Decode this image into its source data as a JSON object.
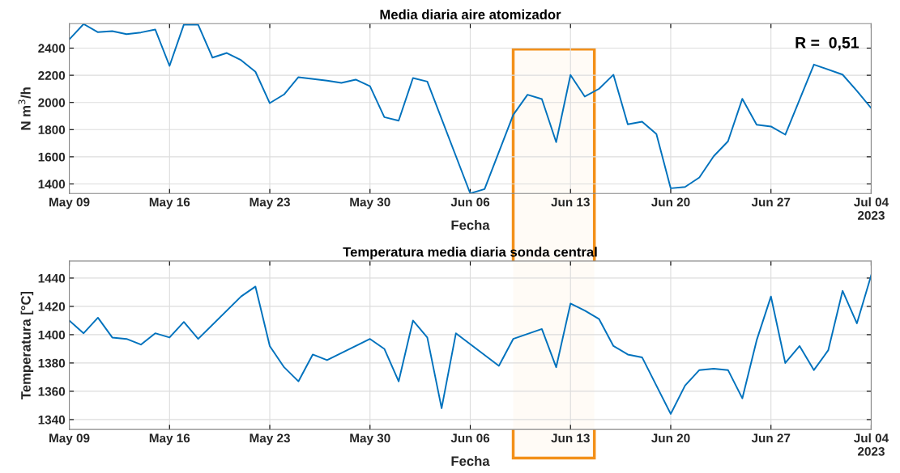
{
  "chart_data": [
    {
      "type": "line",
      "title": "Media diaria aire atomizador",
      "xlabel": "Fecha",
      "ylabel": "N m$^{3}$/h",
      "x": [
        "2023-05-09",
        "2023-05-10",
        "2023-05-11",
        "2023-05-12",
        "2023-05-13",
        "2023-05-14",
        "2023-05-15",
        "2023-05-16",
        "2023-05-17",
        "2023-05-18",
        "2023-05-19",
        "2023-05-20",
        "2023-05-21",
        "2023-05-22",
        "2023-05-23",
        "2023-05-24",
        "2023-05-25",
        "2023-05-27",
        "2023-05-28",
        "2023-05-29",
        "2023-05-30",
        "2023-05-31",
        "2023-06-01",
        "2023-06-02",
        "2023-06-03",
        "2023-06-06",
        "2023-06-07",
        "2023-06-09",
        "2023-06-10",
        "2023-06-11",
        "2023-06-12",
        "2023-06-13",
        "2023-06-14",
        "2023-06-15",
        "2023-06-16",
        "2023-06-17",
        "2023-06-18",
        "2023-06-19",
        "2023-06-20",
        "2023-06-21",
        "2023-06-22",
        "2023-06-23",
        "2023-06-24",
        "2023-06-25",
        "2023-06-26",
        "2023-06-27",
        "2023-06-28",
        "2023-06-30",
        "2023-07-02",
        "2023-07-03",
        "2023-07-04"
      ],
      "series": [
        {
          "color": "#0072bd",
          "values": [
            2464,
            2577,
            2517,
            2525,
            2503,
            2515,
            2537,
            2269,
            2573,
            2572,
            2330,
            2364,
            2311,
            2226,
            1995,
            2059,
            2186,
            2160,
            2144,
            2168,
            2120,
            1892,
            1866,
            2180,
            2154,
            1330,
            1362,
            1908,
            2057,
            2025,
            1708,
            2202,
            2043,
            2101,
            2204,
            1839,
            1858,
            1767,
            1368,
            1378,
            1448,
            1604,
            1714,
            2027,
            1836,
            1823,
            1763,
            2279,
            2205,
            2085,
            1958
          ]
        }
      ],
      "xlim": [
        "2023-05-09",
        "2023-07-04"
      ],
      "xticks": [
        {
          "value": "2023-05-09",
          "label": "May 09"
        },
        {
          "value": "2023-05-16",
          "label": "May 16"
        },
        {
          "value": "2023-05-23",
          "label": "May 23"
        },
        {
          "value": "2023-05-30",
          "label": "May 30"
        },
        {
          "value": "2023-06-06",
          "label": "Jun 06"
        },
        {
          "value": "2023-06-13",
          "label": "Jun 13"
        },
        {
          "value": "2023-06-20",
          "label": "Jun 20"
        },
        {
          "value": "2023-06-27",
          "label": "Jun 27"
        },
        {
          "value": "2023-07-04",
          "label": "Jul 04\n2023"
        }
      ],
      "ylim": [
        1330,
        2580
      ],
      "yticks": [
        1400,
        1600,
        1800,
        2000,
        2200,
        2400
      ],
      "grid": true,
      "line_style": "solid",
      "marker": "none",
      "bands": [
        {
          "axis": "x",
          "from": "2023-06-09",
          "to": "2023-06-14T16:00",
          "color": "#f39019"
        }
      ],
      "annotations": [
        "R =  0,51"
      ]
    },
    {
      "type": "line",
      "title": "Temperatura media diaria sonda central",
      "xlabel": "Fecha",
      "ylabel": "Temperatura [°C]",
      "x": [
        "2023-05-09",
        "2023-05-10",
        "2023-05-11",
        "2023-05-12",
        "2023-05-13",
        "2023-05-14",
        "2023-05-15",
        "2023-05-16",
        "2023-05-17",
        "2023-05-18",
        "2023-05-21",
        "2023-05-22",
        "2023-05-23",
        "2023-05-24",
        "2023-05-25",
        "2023-05-26",
        "2023-05-27",
        "2023-05-30",
        "2023-05-31",
        "2023-06-01",
        "2023-06-02",
        "2023-06-03",
        "2023-06-04",
        "2023-06-05",
        "2023-06-08",
        "2023-06-09",
        "2023-06-11",
        "2023-06-12",
        "2023-06-13",
        "2023-06-14",
        "2023-06-15",
        "2023-06-16",
        "2023-06-17",
        "2023-06-18",
        "2023-06-20",
        "2023-06-21",
        "2023-06-22",
        "2023-06-23",
        "2023-06-24",
        "2023-06-25",
        "2023-06-26",
        "2023-06-27",
        "2023-06-28",
        "2023-06-29",
        "2023-06-30",
        "2023-07-01",
        "2023-07-02",
        "2023-07-03",
        "2023-07-04"
      ],
      "series": [
        {
          "color": "#0072bd",
          "values": [
            1410,
            1401,
            1412,
            1398,
            1397,
            1393,
            1401,
            1398,
            1409,
            1397,
            1427,
            1434,
            1392,
            1377,
            1367,
            1386,
            1382,
            1397,
            1390,
            1367,
            1410,
            1398,
            1348,
            1401,
            1378,
            1397,
            1404,
            1377,
            1422,
            1417,
            1411,
            1392,
            1386,
            1384,
            1344,
            1364,
            1375,
            1376,
            1375,
            1355,
            1396,
            1427,
            1380,
            1392,
            1375,
            1389,
            1431,
            1408,
            1442
          ]
        }
      ],
      "xlim": [
        "2023-05-09",
        "2023-07-04"
      ],
      "xticks": [
        {
          "value": "2023-05-09",
          "label": "May 09"
        },
        {
          "value": "2023-05-16",
          "label": "May 16"
        },
        {
          "value": "2023-05-23",
          "label": "May 23"
        },
        {
          "value": "2023-05-30",
          "label": "May 30"
        },
        {
          "value": "2023-06-06",
          "label": "Jun 06"
        },
        {
          "value": "2023-06-13",
          "label": "Jun 13"
        },
        {
          "value": "2023-06-20",
          "label": "Jun 20"
        },
        {
          "value": "2023-06-27",
          "label": "Jun 27"
        },
        {
          "value": "2023-07-04",
          "label": "Jul 04\n2023"
        }
      ],
      "ylim": [
        1333,
        1452
      ],
      "yticks": [
        1340,
        1360,
        1380,
        1400,
        1420,
        1440
      ],
      "grid": true,
      "line_style": "solid",
      "marker": "none",
      "bands": [
        {
          "axis": "x",
          "from": "2023-06-09",
          "to": "2023-06-14T16:00",
          "color": "#f39019"
        }
      ]
    }
  ]
}
